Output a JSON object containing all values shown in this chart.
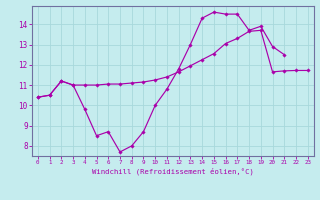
{
  "xlabel": "Windchill (Refroidissement éolien,°C)",
  "background_color": "#c5ecee",
  "grid_color": "#a8d8dc",
  "line_color": "#aa00aa",
  "spine_color": "#7070a0",
  "xlim": [
    -0.5,
    23.5
  ],
  "ylim": [
    7.5,
    14.9
  ],
  "xticks": [
    0,
    1,
    2,
    3,
    4,
    5,
    6,
    7,
    8,
    9,
    10,
    11,
    12,
    13,
    14,
    15,
    16,
    17,
    18,
    19,
    20,
    21,
    22,
    23
  ],
  "yticks": [
    8,
    9,
    10,
    11,
    12,
    13,
    14
  ],
  "line1_x": [
    0,
    1,
    2,
    3,
    4,
    5,
    6,
    7,
    8,
    9,
    10,
    11,
    12,
    13,
    14,
    15,
    16,
    17,
    18,
    19,
    20,
    21
  ],
  "line1_y": [
    10.4,
    10.5,
    11.2,
    11.0,
    9.8,
    8.5,
    8.7,
    7.7,
    8.0,
    8.7,
    10.0,
    10.8,
    11.8,
    13.0,
    14.3,
    14.6,
    14.5,
    14.5,
    13.7,
    13.9,
    12.9,
    12.5
  ],
  "line2_x": [
    0,
    1,
    2,
    3,
    4,
    5,
    6,
    7,
    8,
    9,
    10,
    11,
    12,
    13,
    14,
    15,
    16,
    17,
    18,
    19,
    20,
    21,
    22,
    23
  ],
  "line2_y": [
    10.4,
    10.5,
    11.2,
    11.0,
    11.0,
    11.0,
    11.05,
    11.05,
    11.1,
    11.15,
    11.25,
    11.4,
    11.65,
    11.95,
    12.25,
    12.55,
    13.05,
    13.3,
    13.65,
    13.7,
    11.65,
    11.7,
    11.72,
    11.72
  ]
}
